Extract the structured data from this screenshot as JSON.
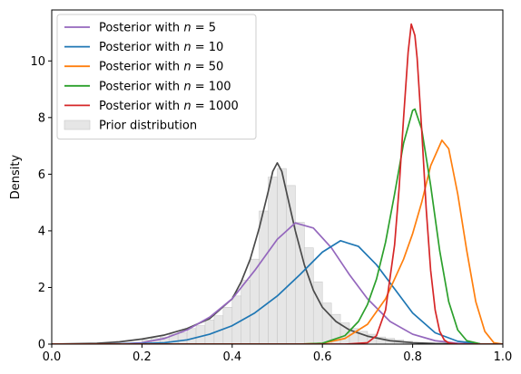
{
  "chart_data": {
    "type": "line",
    "title": "",
    "xlabel": "",
    "ylabel": "Density",
    "xlim": [
      0.0,
      1.0
    ],
    "ylim": [
      0,
      11.8
    ],
    "xticks": [
      "0.0",
      "0.2",
      "0.4",
      "0.6",
      "0.8",
      "1.0"
    ],
    "yticks": [
      "0",
      "2",
      "4",
      "6",
      "8",
      "10"
    ],
    "legend_position": "top-left",
    "grid": false,
    "series": [
      {
        "name": "Posterior with $n = 5$",
        "name_parts": [
          "Posterior with ",
          "n",
          " = 5"
        ],
        "color": "#9467bd",
        "x": [
          0.0,
          0.05,
          0.1,
          0.15,
          0.2,
          0.25,
          0.3,
          0.35,
          0.4,
          0.45,
          0.5,
          0.54,
          0.58,
          0.62,
          0.66,
          0.7,
          0.75,
          0.8,
          0.85,
          0.9,
          0.95,
          1.0
        ],
        "y": [
          0.0,
          0.0,
          0.0,
          0.01,
          0.05,
          0.2,
          0.5,
          0.95,
          1.6,
          2.6,
          3.7,
          4.28,
          4.1,
          3.4,
          2.45,
          1.6,
          0.8,
          0.35,
          0.12,
          0.03,
          0.0,
          0.0
        ]
      },
      {
        "name": "Posterior with $n = 10$",
        "name_parts": [
          "Posterior with ",
          "n",
          " = 10"
        ],
        "color": "#1f77b4",
        "x": [
          0.0,
          0.1,
          0.2,
          0.25,
          0.3,
          0.35,
          0.4,
          0.45,
          0.5,
          0.55,
          0.6,
          0.64,
          0.68,
          0.72,
          0.76,
          0.8,
          0.85,
          0.9,
          0.95,
          1.0
        ],
        "y": [
          0.0,
          0.0,
          0.02,
          0.05,
          0.15,
          0.35,
          0.65,
          1.1,
          1.7,
          2.45,
          3.25,
          3.65,
          3.45,
          2.8,
          1.95,
          1.1,
          0.4,
          0.1,
          0.01,
          0.0
        ]
      },
      {
        "name": "Posterior with $n = 50$",
        "name_parts": [
          "Posterior with ",
          "n",
          " = 50"
        ],
        "color": "#ff7f0e",
        "x": [
          0.0,
          0.5,
          0.55,
          0.6,
          0.65,
          0.7,
          0.74,
          0.78,
          0.8,
          0.82,
          0.84,
          0.865,
          0.88,
          0.9,
          0.92,
          0.94,
          0.96,
          0.98,
          1.0
        ],
        "y": [
          0.0,
          0.0,
          0.0,
          0.03,
          0.2,
          0.7,
          1.6,
          3.0,
          3.9,
          5.0,
          6.3,
          7.2,
          6.9,
          5.3,
          3.3,
          1.5,
          0.45,
          0.05,
          0.0
        ]
      },
      {
        "name": "Posterior with $n = 100$",
        "name_parts": [
          "Posterior with ",
          "n",
          " = 100"
        ],
        "color": "#2ca02c",
        "x": [
          0.0,
          0.55,
          0.6,
          0.65,
          0.68,
          0.7,
          0.72,
          0.74,
          0.76,
          0.78,
          0.8,
          0.805,
          0.82,
          0.84,
          0.86,
          0.88,
          0.9,
          0.92,
          0.95,
          1.0
        ],
        "y": [
          0.0,
          0.0,
          0.03,
          0.3,
          0.8,
          1.4,
          2.3,
          3.6,
          5.3,
          7.1,
          8.25,
          8.3,
          7.6,
          5.6,
          3.3,
          1.5,
          0.5,
          0.12,
          0.01,
          0.0
        ]
      },
      {
        "name": "Posterior with $n = 1000$",
        "name_parts": [
          "Posterior with ",
          "n",
          " = 1000"
        ],
        "color": "#d62728",
        "x": [
          0.0,
          0.65,
          0.7,
          0.72,
          0.74,
          0.76,
          0.77,
          0.78,
          0.79,
          0.797,
          0.805,
          0.81,
          0.82,
          0.83,
          0.84,
          0.85,
          0.86,
          0.87,
          0.88,
          0.9,
          1.0
        ],
        "y": [
          0.0,
          0.0,
          0.05,
          0.3,
          1.2,
          3.5,
          5.5,
          8.0,
          10.3,
          11.3,
          10.9,
          10.1,
          7.6,
          4.8,
          2.6,
          1.2,
          0.45,
          0.15,
          0.04,
          0.0,
          0.0
        ]
      },
      {
        "name": "",
        "color": "#4a4a4a",
        "x": [
          0.0,
          0.1,
          0.15,
          0.2,
          0.25,
          0.3,
          0.35,
          0.4,
          0.42,
          0.44,
          0.46,
          0.48,
          0.49,
          0.5,
          0.51,
          0.52,
          0.54,
          0.56,
          0.58,
          0.6,
          0.63,
          0.66,
          0.7,
          0.75,
          0.8,
          0.85,
          0.9,
          1.0
        ],
        "y": [
          0.0,
          0.03,
          0.08,
          0.18,
          0.32,
          0.55,
          0.9,
          1.6,
          2.2,
          3.0,
          4.1,
          5.4,
          6.1,
          6.4,
          6.1,
          5.4,
          4.0,
          2.8,
          1.9,
          1.3,
          0.8,
          0.5,
          0.28,
          0.12,
          0.05,
          0.02,
          0.01,
          0.0
        ]
      }
    ],
    "histogram": {
      "name": "Prior distribution",
      "color": "#e6e6e6",
      "edge": "#c8c8c8",
      "bin_width": 0.02,
      "bins": [
        [
          0.2,
          0.15
        ],
        [
          0.22,
          0.2
        ],
        [
          0.24,
          0.25
        ],
        [
          0.26,
          0.35
        ],
        [
          0.28,
          0.4
        ],
        [
          0.3,
          0.55
        ],
        [
          0.32,
          0.65
        ],
        [
          0.34,
          0.85
        ],
        [
          0.36,
          1.0
        ],
        [
          0.38,
          1.3
        ],
        [
          0.4,
          1.7
        ],
        [
          0.42,
          2.25
        ],
        [
          0.44,
          3.0
        ],
        [
          0.46,
          4.7
        ],
        [
          0.48,
          5.9
        ],
        [
          0.5,
          6.2
        ],
        [
          0.52,
          5.6
        ],
        [
          0.54,
          4.3
        ],
        [
          0.56,
          3.4
        ],
        [
          0.58,
          2.2
        ],
        [
          0.6,
          1.45
        ],
        [
          0.62,
          1.05
        ],
        [
          0.64,
          0.75
        ],
        [
          0.66,
          0.55
        ],
        [
          0.68,
          0.45
        ],
        [
          0.7,
          0.35
        ],
        [
          0.72,
          0.25
        ],
        [
          0.74,
          0.2
        ],
        [
          0.76,
          0.15
        ],
        [
          0.78,
          0.1
        ]
      ]
    }
  }
}
